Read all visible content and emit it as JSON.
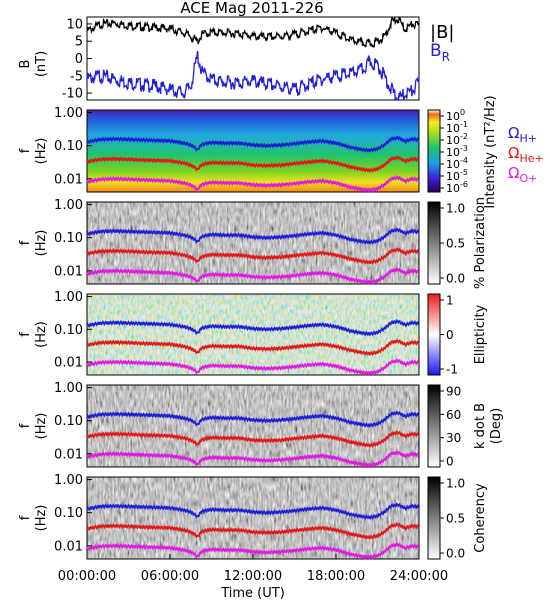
{
  "title": "ACE Mag 2011-226",
  "x_axis": {
    "label": "Time (UT)",
    "tick_labels": [
      "00:00:00",
      "06:00:00",
      "12:00:00",
      "18:00:00",
      "24:00:00"
    ],
    "hours": [
      0,
      6,
      12,
      18,
      24
    ]
  },
  "panels": {
    "b": {
      "ylabel_line1": "B",
      "ylabel_line2": "(nT)",
      "yticks": [
        "10",
        "5",
        "0",
        "-5",
        "-10"
      ],
      "legend_b": "|B|",
      "legend_br_main": "B",
      "legend_br_sub": "R"
    },
    "freq": {
      "ylabel_line1": "f",
      "ylabel_line2": "(Hz)",
      "yticks": [
        "1.00",
        "0.10",
        "0.01"
      ]
    },
    "intensity": {
      "cb_label": "Intensity (nT²/Hz)",
      "cb_ticks": [
        "10",
        "10",
        "10",
        "10",
        "10",
        "10",
        "10"
      ],
      "cb_exps": [
        "0",
        "-1",
        "-2",
        "-3",
        "-4",
        "-5",
        "-6"
      ],
      "gyro_legend": [
        {
          "sym": "Ω",
          "sub": "H+",
          "color": "#1f1fd6"
        },
        {
          "sym": "Ω",
          "sub": "He+",
          "color": "#e01a1a"
        },
        {
          "sym": "Ω",
          "sub": "O+",
          "color": "#e01ae0"
        }
      ]
    },
    "polarization": {
      "cb_label": "% Polarization",
      "cb_ticks": [
        "1.0",
        "0.5",
        "0.0"
      ]
    },
    "ellipticity": {
      "cb_label": "Ellipticity",
      "cb_ticks": [
        "1",
        "0",
        "-1"
      ]
    },
    "kdotb": {
      "cb_label_line1": "k dot B",
      "cb_label_line2": "(Deg)",
      "cb_ticks": [
        "90",
        "60",
        "30",
        "0"
      ]
    },
    "coherency": {
      "cb_label": "Coherency",
      "cb_ticks": [
        "1.0",
        "0.5",
        "0.0"
      ]
    }
  },
  "colors": {
    "b_total": "#000000",
    "b_radial": "#1f1fd6",
    "gyro_h": "#1f1fd6",
    "gyro_he": "#e01a1a",
    "gyro_o": "#e01ae0"
  },
  "chart_data": {
    "type": "line",
    "title": "ACE Mag 2011-226",
    "xlabel": "Time (UT)",
    "xlim": [
      0,
      24
    ],
    "panel_b": {
      "ylabel": "B (nT)",
      "ylim": [
        -12,
        12
      ],
      "x": [
        0,
        1,
        2,
        3,
        4,
        5,
        6,
        7,
        7.5,
        8,
        8.3,
        9,
        10,
        11,
        12,
        13,
        14,
        15,
        16,
        17,
        18,
        19,
        20,
        20.5,
        21,
        21.5,
        22,
        22.5,
        23,
        23.5,
        24
      ],
      "series": [
        {
          "name": "|B|",
          "values": [
            8.5,
            10.5,
            10.8,
            10.2,
            9.8,
            9.5,
            9.2,
            8.0,
            7.0,
            5.5,
            7.5,
            8.2,
            8.0,
            7.8,
            7.0,
            6.8,
            7.0,
            7.5,
            8.5,
            9.5,
            8.0,
            6.0,
            5.0,
            4.8,
            5.5,
            7.0,
            11.0,
            12.0,
            9.0,
            10.5,
            10.0
          ]
        },
        {
          "name": "B_R",
          "values": [
            -5.0,
            -4.0,
            -5.0,
            -6.0,
            -6.5,
            -7.0,
            -8.0,
            -9.0,
            -7.0,
            2.0,
            -3.0,
            -5.0,
            -6.0,
            -6.0,
            -5.5,
            -6.5,
            -7.0,
            -8.0,
            -6.5,
            -5.0,
            -4.0,
            -3.5,
            -2.0,
            0.0,
            -1.0,
            -4.0,
            -8.0,
            -11.0,
            -9.0,
            -8.5,
            -6.0
          ]
        }
      ]
    },
    "freq_panels": {
      "ylabel": "f (Hz)",
      "scale": "log",
      "ylim": [
        0.004,
        1.2
      ],
      "x": [
        0,
        1,
        2,
        3,
        4,
        5,
        6,
        7,
        7.5,
        8,
        8.3,
        9,
        10,
        11,
        12,
        13,
        14,
        15,
        16,
        17,
        18,
        19,
        20,
        20.5,
        21,
        21.5,
        22,
        22.5,
        23,
        23.5,
        24
      ],
      "series": [
        {
          "name": "Ω H+",
          "values": [
            0.13,
            0.155,
            0.16,
            0.155,
            0.15,
            0.145,
            0.14,
            0.12,
            0.105,
            0.075,
            0.11,
            0.125,
            0.12,
            0.12,
            0.105,
            0.1,
            0.105,
            0.115,
            0.13,
            0.14,
            0.12,
            0.09,
            0.075,
            0.073,
            0.08,
            0.105,
            0.16,
            0.175,
            0.135,
            0.16,
            0.15
          ]
        },
        {
          "name": "Ω He+",
          "values": [
            0.033,
            0.039,
            0.04,
            0.039,
            0.037,
            0.036,
            0.035,
            0.03,
            0.026,
            0.019,
            0.027,
            0.031,
            0.03,
            0.03,
            0.026,
            0.025,
            0.026,
            0.029,
            0.032,
            0.035,
            0.03,
            0.023,
            0.019,
            0.018,
            0.02,
            0.026,
            0.04,
            0.044,
            0.034,
            0.04,
            0.038
          ]
        },
        {
          "name": "Ω O+",
          "values": [
            0.0081,
            0.0097,
            0.01,
            0.0097,
            0.0093,
            0.009,
            0.0087,
            0.0075,
            0.0066,
            0.0047,
            0.0068,
            0.0078,
            0.0075,
            0.0075,
            0.0066,
            0.0063,
            0.0066,
            0.0072,
            0.0081,
            0.0087,
            0.0075,
            0.0056,
            0.0047,
            0.0046,
            0.005,
            0.0066,
            0.01,
            0.011,
            0.0084,
            0.01,
            0.0094
          ]
        }
      ]
    },
    "colorbars": {
      "intensity": {
        "label": "Intensity (nT²/Hz)",
        "scale": "log",
        "range": [
          1e-06,
          1
        ]
      },
      "polarization": {
        "label": "% Polarization",
        "range": [
          0,
          1
        ]
      },
      "ellipticity": {
        "label": "Ellipticity",
        "range": [
          -1,
          1
        ]
      },
      "kdotb": {
        "label": "k dot B (Deg)",
        "range": [
          0,
          90
        ]
      },
      "coherency": {
        "label": "Coherency",
        "range": [
          0,
          1
        ]
      }
    }
  }
}
